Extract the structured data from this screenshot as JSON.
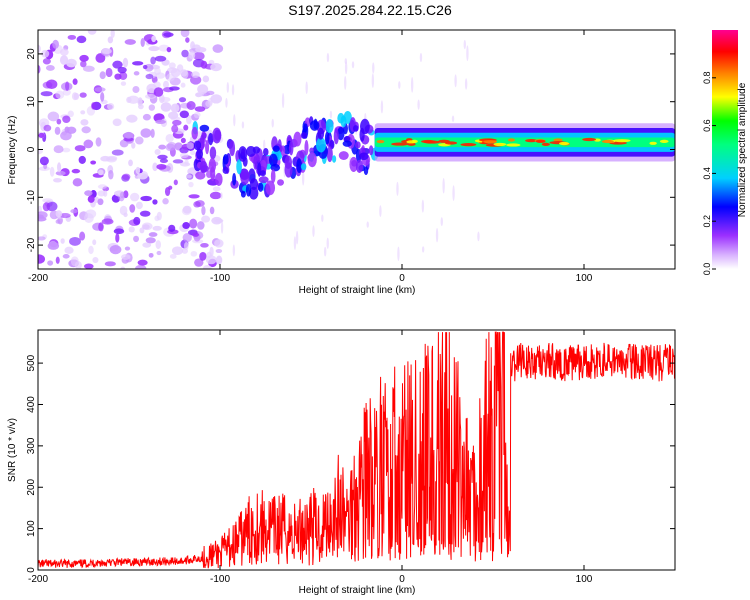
{
  "figure": {
    "title": "S197.2025.284.22.15.C26"
  },
  "chart_data": [
    {
      "type": "heatmap",
      "xlabel": "Height of straight line (km)",
      "ylabel": "Frequency (Hz)",
      "xlim": [
        -200,
        150
      ],
      "ylim": [
        -25,
        25
      ],
      "x_ticks": [
        -200,
        -100,
        0,
        100
      ],
      "y_ticks": [
        -20,
        -10,
        0,
        10,
        20
      ],
      "colorbar": {
        "label": "Normalized spectral amplitude",
        "ticks": [
          "0.0",
          "0.2",
          "0.4",
          "0.6",
          "0.8"
        ],
        "range": [
          0,
          1
        ],
        "colormap": [
          "#ffffff",
          "#9b30ff",
          "#0000ff",
          "#00d0ff",
          "#00ff00",
          "#ffff00",
          "#ff8000",
          "#ff0000",
          "#ff0090"
        ]
      },
      "description_regions": [
        {
          "x_range": [
            -200,
            -110
          ],
          "level": 0.15,
          "pattern": "scattered noise"
        },
        {
          "x_range": [
            -115,
            -15
          ],
          "level": 0.3,
          "pattern": "patchy signal near 0 Hz, drifting between -7 and +6 Hz"
        },
        {
          "x_range": [
            -15,
            150
          ],
          "level": 0.9,
          "pattern": "narrow band centered ~+1.5 Hz"
        }
      ]
    },
    {
      "type": "line",
      "xlabel": "Height of straight line (km)",
      "ylabel": "SNR (10 * v/v)",
      "xlim": [
        -200,
        150
      ],
      "ylim": [
        0,
        580
      ],
      "x_ticks": [
        -200,
        -100,
        0,
        100
      ],
      "y_ticks": [
        0,
        100,
        200,
        300,
        400,
        500
      ],
      "color": "#ff0000",
      "series": [
        {
          "name": "SNR",
          "x": [
            -200,
            -180,
            -160,
            -140,
            -120,
            -110,
            -100,
            -95,
            -90,
            -85,
            -80,
            -75,
            -70,
            -65,
            -60,
            -55,
            -50,
            -45,
            -40,
            -35,
            -30,
            -25,
            -20,
            -18,
            -15,
            -12,
            -10,
            -7,
            -5,
            -3,
            0,
            3,
            5,
            8,
            10,
            12,
            15,
            17,
            18,
            20,
            25,
            28,
            30,
            33,
            35,
            38,
            40,
            42,
            44,
            46,
            48,
            49,
            50,
            51,
            52,
            55,
            56,
            57,
            58,
            59,
            60,
            61,
            62,
            65,
            70,
            80,
            90,
            100,
            110,
            120,
            130,
            140,
            150
          ],
          "values": [
            15,
            15,
            18,
            20,
            22,
            30,
            40,
            55,
            70,
            90,
            110,
            100,
            95,
            100,
            85,
            100,
            110,
            95,
            130,
            150,
            120,
            190,
            230,
            250,
            230,
            290,
            260,
            250,
            290,
            270,
            310,
            330,
            280,
            310,
            330,
            300,
            350,
            330,
            40,
            390,
            420,
            410,
            350,
            300,
            250,
            210,
            200,
            230,
            270,
            350,
            420,
            420,
            50,
            420,
            470,
            470,
            500,
            510,
            90,
            80,
            500,
            505,
            500,
            505,
            500,
            505,
            500,
            500,
            505,
            500,
            505,
            500,
            505
          ]
        }
      ]
    }
  ]
}
